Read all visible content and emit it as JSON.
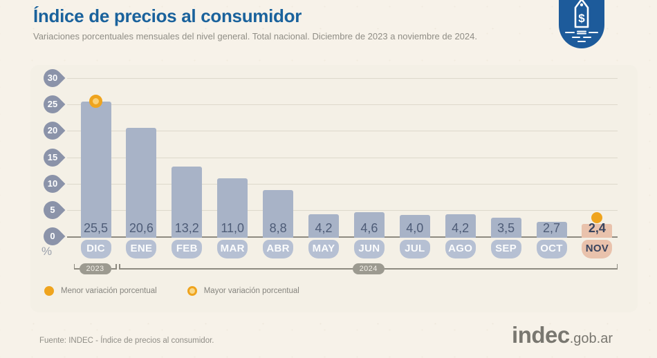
{
  "header": {
    "title": "Índice de precios al consumidor",
    "subtitle": "Variaciones porcentuales mensuales del nivel general. Total nacional. Diciembre de 2023 a noviembre de 2024."
  },
  "icon": {
    "name": "price-tag-badge",
    "dollar": "$",
    "color": "#1d5b9b"
  },
  "chart_data": {
    "type": "bar",
    "title": "Índice de precios al consumidor",
    "categories": [
      "DIC",
      "ENE",
      "FEB",
      "MAR",
      "ABR",
      "MAY",
      "JUN",
      "JUL",
      "AGO",
      "SEP",
      "OCT",
      "NOV"
    ],
    "values": [
      25.5,
      20.6,
      13.2,
      11.0,
      8.8,
      4.2,
      4.6,
      4.0,
      4.2,
      3.5,
      2.7,
      2.4
    ],
    "value_labels": [
      "25,5",
      "20,6",
      "13,2",
      "11,0",
      "8,8",
      "4,2",
      "4,6",
      "4,0",
      "4,2",
      "3,5",
      "2,7",
      "2,4"
    ],
    "ylabel": "%",
    "y_ticks": [
      0,
      5,
      10,
      15,
      20,
      25,
      30
    ],
    "ylim": [
      0,
      30
    ],
    "grid": true,
    "year_groups": [
      {
        "label": "2023",
        "from": 0,
        "to": 0
      },
      {
        "label": "2024",
        "from": 1,
        "to": 11
      }
    ],
    "markers": [
      {
        "index": 0,
        "month": "DIC",
        "type": "mayor",
        "style": "ring"
      },
      {
        "index": 11,
        "month": "NOV",
        "type": "menor",
        "style": "solid"
      }
    ],
    "highlight_index": 11
  },
  "legend": [
    {
      "label": "Menor variación porcentual",
      "marker": "filled"
    },
    {
      "label": "Mayor variación porcentual",
      "marker": "ring"
    }
  ],
  "footer": {
    "source": "Fuente: INDEC - Índice de precios al consumidor.",
    "logo_text": "indec",
    "logo_suffix": ".gob.ar"
  },
  "colors": {
    "title_blue": "#1a629c",
    "bar": "#a8b3c7",
    "month_pill": "#b6c0d3",
    "highlight_salmon": "#e9c2ac",
    "accent_orange": "#efa41e",
    "icon_blue": "#1d5b9b",
    "background": "#f7f2e9",
    "panel": "#f4f0e6"
  }
}
